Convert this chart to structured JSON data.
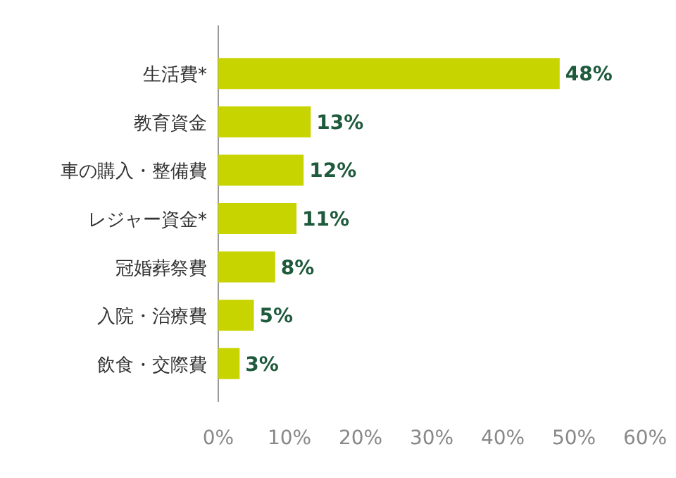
{
  "chart_data": {
    "type": "bar",
    "orientation": "horizontal",
    "categories": [
      "生活費*",
      "教育資金",
      "車の購入・整備費",
      "レジャー資金*",
      "冠婚葬祭費",
      "入院・治療費",
      "飲食・交際費"
    ],
    "values": [
      48,
      13,
      12,
      11,
      8,
      5,
      3
    ],
    "color": "#c8d400",
    "value_labels": [
      "48%",
      "13%",
      "12%",
      "11%",
      "8%",
      "5%",
      "3%"
    ],
    "xlim": [
      0,
      60
    ],
    "xticks": [
      {
        "value": 0,
        "label": "0%"
      },
      {
        "value": 10,
        "label": "10%"
      },
      {
        "value": 20,
        "label": "20%"
      },
      {
        "value": 30,
        "label": "30%"
      },
      {
        "value": 40,
        "label": "40%"
      },
      {
        "value": 50,
        "label": "50%"
      },
      {
        "value": 60,
        "label": "60%"
      }
    ],
    "grid": false
  }
}
